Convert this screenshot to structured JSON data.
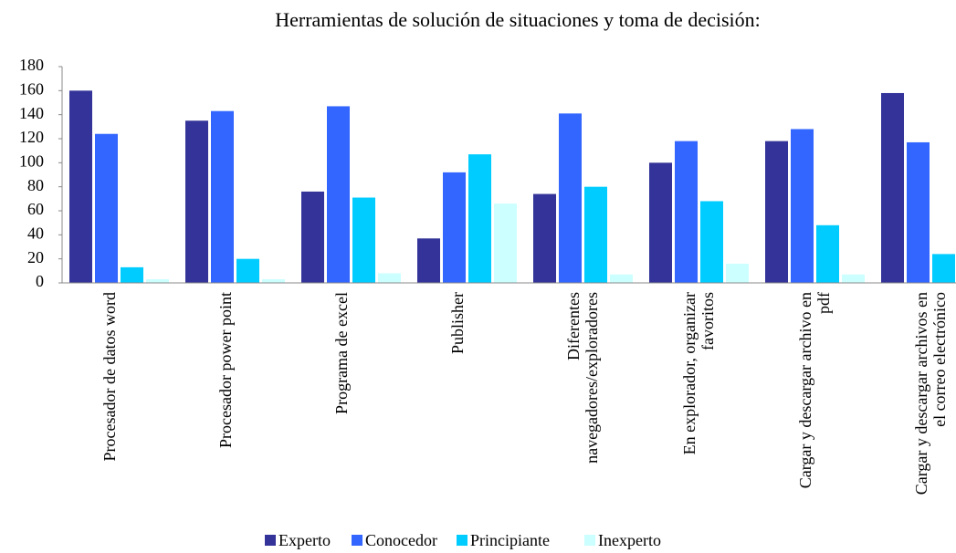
{
  "chart_data": {
    "type": "bar",
    "title": "Herramientas de solución de situaciones y toma de decisión:",
    "categories": [
      "Procesador de datos word",
      "Procesador power point",
      "Programa de excel",
      "Publisher",
      "Diferentes navegadores/exploradores",
      "En explorador, organizar favoritos",
      "Cargar y descargar archivo en pdf",
      "Cargar y descargar archivos en el correo electrónico"
    ],
    "series": [
      {
        "name": "Experto",
        "color": "#333399",
        "values": [
          160,
          135,
          76,
          37,
          74,
          100,
          118,
          158
        ]
      },
      {
        "name": "Conocedor",
        "color": "#3366ff",
        "values": [
          124,
          143,
          147,
          92,
          141,
          118,
          128,
          117
        ]
      },
      {
        "name": "Principiante",
        "color": "#00ccff",
        "values": [
          13,
          20,
          71,
          107,
          80,
          68,
          48,
          24
        ]
      },
      {
        "name": "Inexperto",
        "color": "#ccffff",
        "values": [
          3,
          3,
          8,
          66,
          7,
          16,
          7,
          null
        ]
      }
    ],
    "ylim": [
      0,
      180
    ],
    "yticks": [
      0,
      20,
      40,
      60,
      80,
      100,
      120,
      140,
      160,
      180
    ],
    "legend": "bottom"
  }
}
